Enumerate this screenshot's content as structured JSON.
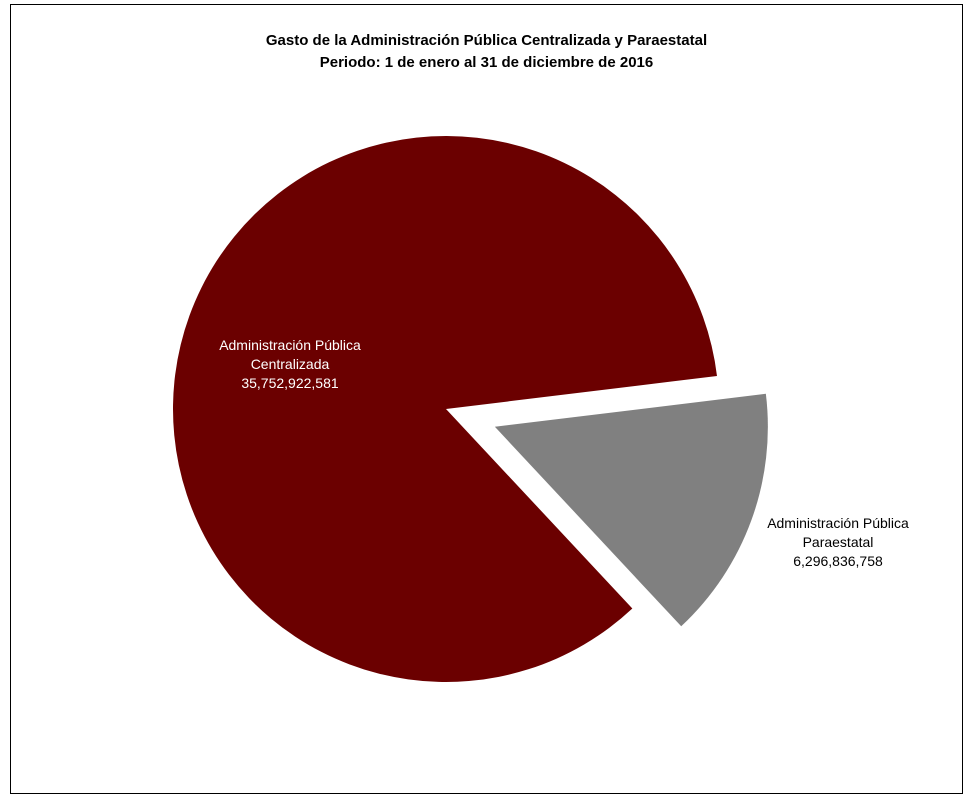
{
  "chart_data": {
    "type": "pie",
    "title": "Gasto de la Administración Pública Centralizada y Paraestatal",
    "subtitle": "Periodo: 1 de enero al 31 de diciembre de 2016",
    "slices": [
      {
        "label_lines": [
          "Administración Pública",
          "Centralizada"
        ],
        "value": 35752922581,
        "value_label": "35,752,922,581",
        "color": "#6b0000",
        "label_color": "#ffffff",
        "exploded": false
      },
      {
        "label_lines": [
          "Administración Pública",
          "Paraestatal"
        ],
        "value": 6296836758,
        "value_label": "6,296,836,758",
        "color": "#808080",
        "label_color": "#000000",
        "exploded": true
      }
    ]
  }
}
